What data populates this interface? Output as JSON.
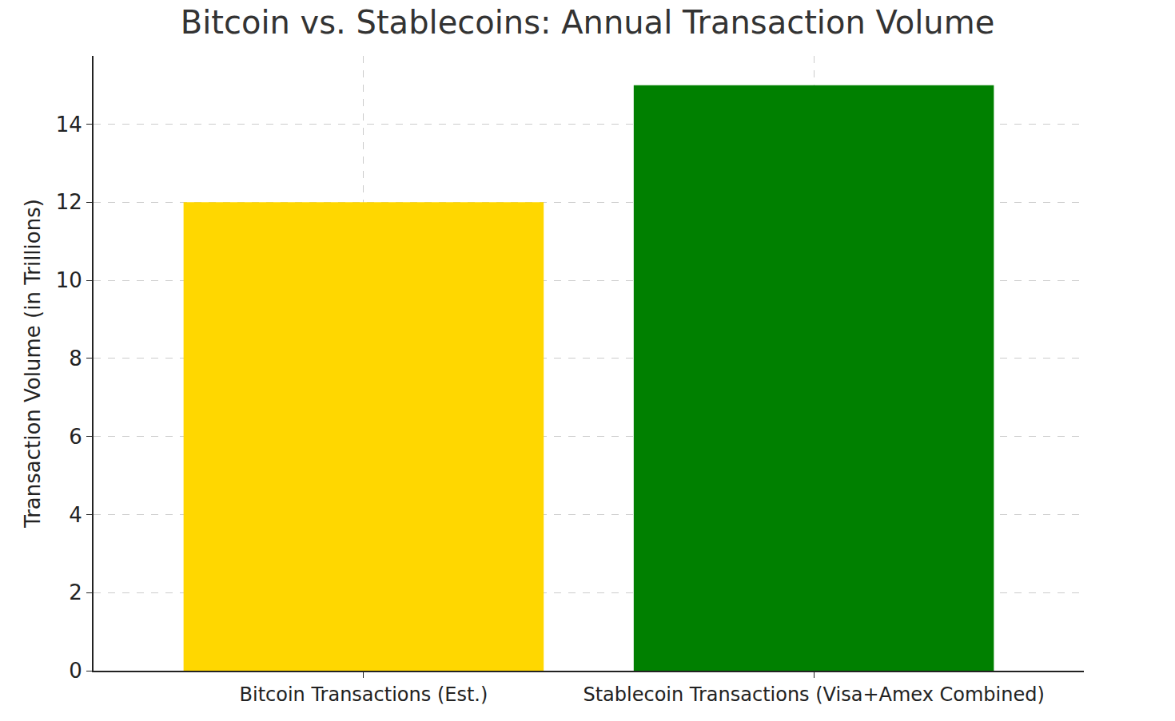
{
  "chart_data": {
    "type": "bar",
    "title": "Bitcoin vs. Stablecoins: Annual Transaction Volume",
    "y_label": "Transaction Volume (in Trillions)",
    "categories": [
      "Bitcoin Transactions (Est.)",
      "Stablecoin Transactions (Visa+Amex Combined)"
    ],
    "values": [
      12,
      15
    ],
    "colors": [
      "#FFD700",
      "#008000"
    ],
    "ylim": [
      0,
      15.75
    ],
    "yticks": [
      0,
      2,
      4,
      6,
      8,
      10,
      12,
      14
    ],
    "grid": true
  }
}
